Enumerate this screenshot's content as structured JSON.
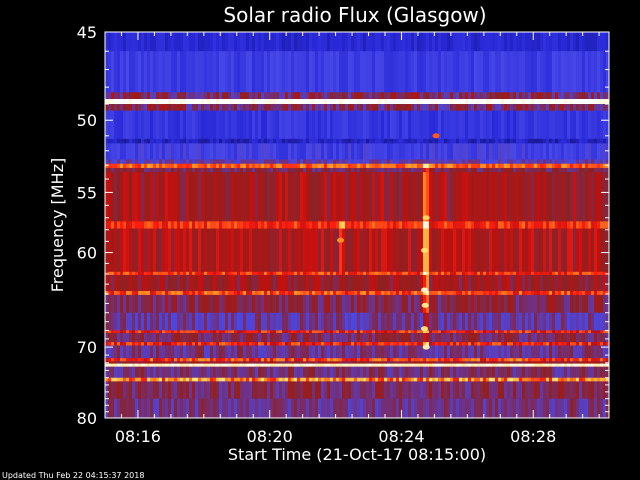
{
  "footer": {
    "updated": "Updated Thu Feb 22 04:15:37 2018"
  },
  "chart_data": {
    "type": "heatmap",
    "title": "Solar radio Flux (Glasgow)",
    "xlabel": "Start Time (21-Oct-17 08:15:00)",
    "ylabel": "Frequency [MHz]",
    "x_unit": "minutes after 08:15:00",
    "xlim": [
      0,
      15.3
    ],
    "ylim": [
      45,
      80
    ],
    "y_scale": "reciprocal",
    "x_ticks": [
      {
        "value": 1,
        "label": "08:16"
      },
      {
        "value": 5,
        "label": "08:20"
      },
      {
        "value": 9,
        "label": "08:24"
      },
      {
        "value": 13,
        "label": "08:28"
      }
    ],
    "y_ticks": [
      {
        "value": 45,
        "label": "45"
      },
      {
        "value": 50,
        "label": "50"
      },
      {
        "value": 55,
        "label": "55"
      },
      {
        "value": 60,
        "label": "60"
      },
      {
        "value": 70,
        "label": "70"
      },
      {
        "value": 80,
        "label": "80"
      }
    ],
    "colormap": [
      "#000000",
      "#10106a",
      "#2828d8",
      "#4848e8",
      "#703080",
      "#902020",
      "#c01010",
      "#ff2010",
      "#ff9020",
      "#ffe070",
      "#ffffff"
    ],
    "bands": [
      {
        "from": 45.0,
        "to": 46.0,
        "level": 2.0,
        "noise": 0.3
      },
      {
        "from": 46.0,
        "to": 48.3,
        "level": 2.6,
        "noise": 0.4
      },
      {
        "from": 48.3,
        "to": 48.7,
        "level": 4.5,
        "noise": 1.2
      },
      {
        "from": 48.7,
        "to": 49.0,
        "level": 10.0,
        "noise": 0.3
      },
      {
        "from": 49.0,
        "to": 49.4,
        "level": 4.5,
        "noise": 1.2
      },
      {
        "from": 49.4,
        "to": 51.2,
        "level": 2.4,
        "noise": 0.4
      },
      {
        "from": 51.2,
        "to": 51.5,
        "level": 1.8,
        "noise": 0.4
      },
      {
        "from": 51.5,
        "to": 52.6,
        "level": 2.8,
        "noise": 0.5
      },
      {
        "from": 52.6,
        "to": 52.9,
        "level": 3.5,
        "noise": 0.8
      },
      {
        "from": 52.9,
        "to": 53.2,
        "level": 7.6,
        "noise": 0.6
      },
      {
        "from": 53.2,
        "to": 53.5,
        "level": 4.5,
        "noise": 0.8
      },
      {
        "from": 53.5,
        "to": 57.3,
        "level": 5.4,
        "noise": 0.9
      },
      {
        "from": 57.3,
        "to": 57.9,
        "level": 7.0,
        "noise": 0.7
      },
      {
        "from": 57.9,
        "to": 61.8,
        "level": 5.6,
        "noise": 0.9
      },
      {
        "from": 61.8,
        "to": 62.1,
        "level": 7.0,
        "noise": 0.9
      },
      {
        "from": 62.1,
        "to": 63.7,
        "level": 5.2,
        "noise": 0.9
      },
      {
        "from": 63.7,
        "to": 64.1,
        "level": 7.2,
        "noise": 0.9
      },
      {
        "from": 64.1,
        "to": 66.0,
        "level": 4.6,
        "noise": 1.0
      },
      {
        "from": 66.0,
        "to": 68.0,
        "level": 3.8,
        "noise": 0.9
      },
      {
        "from": 68.0,
        "to": 68.3,
        "level": 6.8,
        "noise": 1.0
      },
      {
        "from": 68.3,
        "to": 69.4,
        "level": 4.4,
        "noise": 0.9
      },
      {
        "from": 69.4,
        "to": 69.8,
        "level": 6.8,
        "noise": 1.0
      },
      {
        "from": 69.8,
        "to": 71.4,
        "level": 4.0,
        "noise": 0.9
      },
      {
        "from": 71.4,
        "to": 71.8,
        "level": 7.2,
        "noise": 1.0
      },
      {
        "from": 71.8,
        "to": 72.1,
        "level": 5.0,
        "noise": 0.8
      },
      {
        "from": 72.1,
        "to": 72.5,
        "level": 9.6,
        "noise": 0.3
      },
      {
        "from": 72.5,
        "to": 74.0,
        "level": 4.2,
        "noise": 0.9
      },
      {
        "from": 74.0,
        "to": 74.5,
        "level": 8.0,
        "noise": 1.2
      },
      {
        "from": 74.5,
        "to": 77.0,
        "level": 4.4,
        "noise": 0.9
      },
      {
        "from": 77.0,
        "to": 80.0,
        "level": 4.0,
        "noise": 0.8
      }
    ],
    "vertical_features": [
      {
        "t_from": 9.65,
        "t_to": 9.8,
        "f_from": 53.0,
        "f_to": 70.5,
        "boost": 2.2
      },
      {
        "t_from": 7.1,
        "t_to": 7.22,
        "f_from": 54.0,
        "f_to": 60.0,
        "boost": 1.2
      }
    ],
    "hot_spots": [
      {
        "t": 9.75,
        "f": 57.0,
        "strength": 8.8
      },
      {
        "t": 9.7,
        "f": 59.8,
        "strength": 9.0
      },
      {
        "t": 9.7,
        "f": 63.6,
        "strength": 9.6
      },
      {
        "t": 9.72,
        "f": 65.2,
        "strength": 9.2
      },
      {
        "t": 9.7,
        "f": 67.8,
        "strength": 9.0
      },
      {
        "t": 9.75,
        "f": 70.0,
        "strength": 9.4
      },
      {
        "t": 7.15,
        "f": 58.9,
        "strength": 8.0
      },
      {
        "t": 10.05,
        "f": 51.0,
        "strength": 7.5
      }
    ]
  }
}
